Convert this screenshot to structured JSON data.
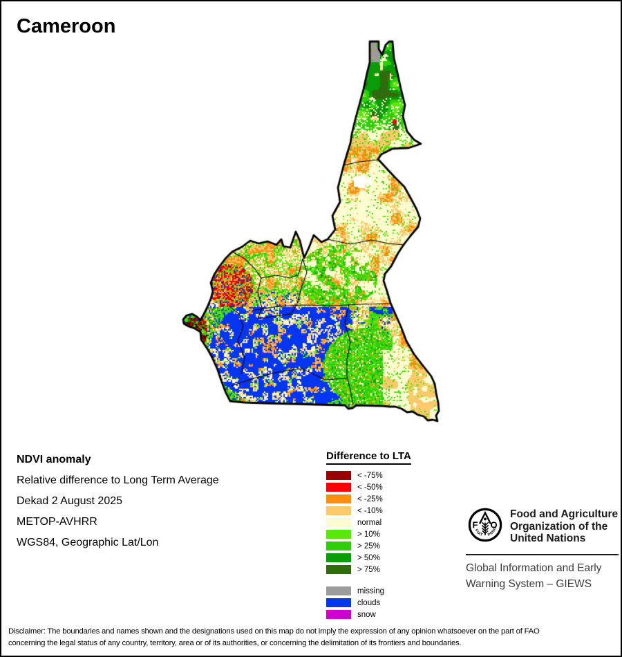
{
  "title": "Cameroon",
  "info": {
    "heading": "NDVI anomaly",
    "line1": "Relative difference to Long Term Average",
    "line2": "Dekad 2 August 2025",
    "line3": "METOP-AVHRR",
    "line4": "WGS84, Geographic Lat/Lon"
  },
  "legend": {
    "title": "Difference to LTA",
    "items": [
      {
        "label": "< -75%",
        "color": "#9A0000"
      },
      {
        "label": "< -50%",
        "color": "#FB0000"
      },
      {
        "label": "< -25%",
        "color": "#FC8D0D"
      },
      {
        "label": "< -10%",
        "color": "#FDC96B"
      },
      {
        "label": "normal",
        "color": "#FCFCD0"
      },
      {
        "label": "> 10%",
        "color": "#58E80A"
      },
      {
        "label": "> 25%",
        "color": "#2FCE0B"
      },
      {
        "label": "> 50%",
        "color": "#089D08"
      },
      {
        "label": "> 75%",
        "color": "#2E6C0D"
      }
    ],
    "extra_items": [
      {
        "label": "missing",
        "color": "#9C9C9C"
      },
      {
        "label": "clouds",
        "color": "#0435F0"
      },
      {
        "label": "snow",
        "color": "#CB00CE"
      }
    ]
  },
  "map": {
    "region": "Cameroon national boundary with first-level region boundaries",
    "palette": {
      "dark_red": "#9A0000",
      "red": "#FB0000",
      "orange": "#FC8D0D",
      "light_orange": "#FDC96B",
      "normal": "#FCFCD0",
      "green_10": "#58E80A",
      "green_25": "#2FCE0B",
      "green_50": "#089D08",
      "green_75": "#2E6C0D",
      "missing": "#9C9C9C",
      "clouds": "#0435F0",
      "snow": "#CB00CE",
      "dark": "#1A0000",
      "white": "#FFFFFF",
      "boundary": "#000000"
    }
  },
  "footer": {
    "fao_logo": {
      "letter_f": "F",
      "letter_o": "O",
      "motto_left": "FIAT",
      "motto_right": "PANIS"
    },
    "fao_name_line1": "Food and Agriculture",
    "fao_name_line2": "Organization of the",
    "fao_name_line3": "United Nations",
    "giews_line1": "Global Information and Early",
    "giews_line2": "Warning System – GIEWS"
  },
  "disclaimer": {
    "line1": "Disclaimer: The boundaries and names shown and the designations used on this map do not imply the expression of any opinion whatsoever on the part of FAO",
    "line2": "concerning the legal status of any country, territory, area or of its authorities, or concerning the delimitation of its frontiers and boundaries."
  }
}
